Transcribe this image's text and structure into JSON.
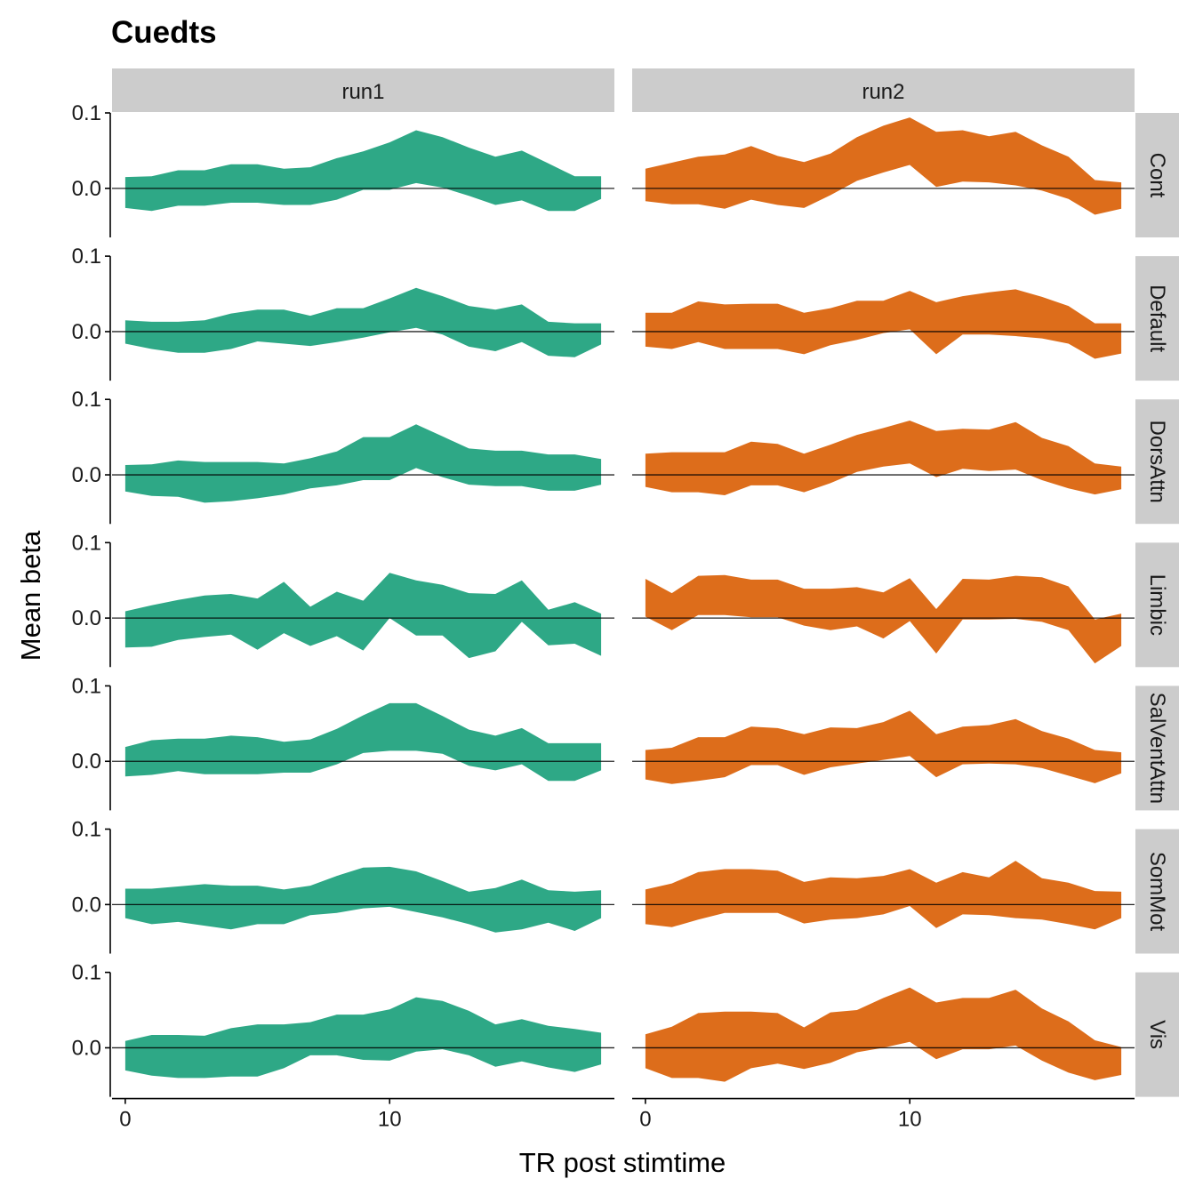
{
  "chart_data": {
    "type": "area",
    "title": "Cuedts",
    "xlabel": "TR post stimtime",
    "ylabel": "Mean beta",
    "xlim": [
      -0.5,
      18.5
    ],
    "ylim": [
      -0.065,
      0.1
    ],
    "x_ticks": [
      0,
      10
    ],
    "x_tick_labels": [
      "0",
      "10"
    ],
    "y_ticks": [
      0.0,
      0.1
    ],
    "y_tick_labels": [
      "0.0",
      "0.1"
    ],
    "reference_line_y": 0,
    "columns": [
      "run1",
      "run2"
    ],
    "rows": [
      "Cont",
      "Default",
      "DorsAttn",
      "Limbic",
      "SalVentAttn",
      "SomMot",
      "Vis"
    ],
    "colors": {
      "run1": "#2ea886",
      "run2": "#dd6d1b",
      "strip": "#cccccc"
    },
    "x": [
      0,
      1,
      2,
      3,
      4,
      5,
      6,
      7,
      8,
      9,
      10,
      11,
      12,
      13,
      14,
      15,
      16,
      17,
      18
    ],
    "panels": [
      {
        "row": "Cont",
        "col": "run1",
        "upper": [
          0.015,
          0.016,
          0.024,
          0.024,
          0.032,
          0.032,
          0.026,
          0.028,
          0.04,
          0.049,
          0.061,
          0.077,
          0.068,
          0.054,
          0.042,
          0.05,
          0.033,
          0.016,
          0.016
        ],
        "lower": [
          -0.026,
          -0.03,
          -0.023,
          -0.023,
          -0.019,
          -0.019,
          -0.022,
          -0.022,
          -0.015,
          -0.002,
          -0.002,
          0.007,
          0.001,
          -0.01,
          -0.022,
          -0.016,
          -0.03,
          -0.03,
          -0.014
        ]
      },
      {
        "row": "Cont",
        "col": "run2",
        "upper": [
          0.026,
          0.034,
          0.042,
          0.045,
          0.056,
          0.043,
          0.035,
          0.046,
          0.068,
          0.083,
          0.094,
          0.075,
          0.077,
          0.069,
          0.075,
          0.057,
          0.042,
          0.011,
          0.008
        ],
        "lower": [
          -0.017,
          -0.021,
          -0.021,
          -0.027,
          -0.015,
          -0.022,
          -0.026,
          -0.009,
          0.01,
          0.021,
          0.031,
          0.002,
          0.009,
          0.008,
          0.004,
          -0.003,
          -0.014,
          -0.035,
          -0.027
        ]
      },
      {
        "row": "Default",
        "col": "run1",
        "upper": [
          0.015,
          0.013,
          0.013,
          0.015,
          0.024,
          0.029,
          0.029,
          0.021,
          0.031,
          0.031,
          0.044,
          0.058,
          0.047,
          0.034,
          0.029,
          0.036,
          0.013,
          0.011,
          0.011
        ],
        "lower": [
          -0.016,
          -0.023,
          -0.028,
          -0.028,
          -0.023,
          -0.013,
          -0.016,
          -0.019,
          -0.014,
          -0.008,
          -0.001,
          0.005,
          -0.004,
          -0.02,
          -0.026,
          -0.014,
          -0.032,
          -0.034,
          -0.017
        ]
      },
      {
        "row": "Default",
        "col": "run2",
        "upper": [
          0.025,
          0.025,
          0.04,
          0.036,
          0.037,
          0.037,
          0.025,
          0.031,
          0.041,
          0.041,
          0.054,
          0.039,
          0.047,
          0.052,
          0.056,
          0.046,
          0.034,
          0.011,
          0.011
        ],
        "lower": [
          -0.02,
          -0.023,
          -0.014,
          -0.023,
          -0.023,
          -0.023,
          -0.03,
          -0.018,
          -0.011,
          -0.002,
          0.003,
          -0.03,
          -0.004,
          -0.004,
          -0.006,
          -0.009,
          -0.016,
          -0.036,
          -0.029
        ]
      },
      {
        "row": "DorsAttn",
        "col": "run1",
        "upper": [
          0.013,
          0.014,
          0.019,
          0.017,
          0.017,
          0.017,
          0.015,
          0.022,
          0.031,
          0.05,
          0.05,
          0.067,
          0.051,
          0.035,
          0.032,
          0.032,
          0.027,
          0.027,
          0.021
        ],
        "lower": [
          -0.022,
          -0.028,
          -0.029,
          -0.037,
          -0.035,
          -0.031,
          -0.026,
          -0.018,
          -0.014,
          -0.007,
          -0.007,
          0.009,
          -0.003,
          -0.013,
          -0.015,
          -0.015,
          -0.021,
          -0.021,
          -0.013
        ]
      },
      {
        "row": "DorsAttn",
        "col": "run2",
        "upper": [
          0.028,
          0.03,
          0.03,
          0.03,
          0.044,
          0.041,
          0.028,
          0.04,
          0.053,
          0.062,
          0.072,
          0.058,
          0.061,
          0.06,
          0.07,
          0.049,
          0.038,
          0.015,
          0.011
        ],
        "lower": [
          -0.016,
          -0.023,
          -0.023,
          -0.027,
          -0.014,
          -0.014,
          -0.023,
          -0.011,
          0.004,
          0.011,
          0.015,
          -0.003,
          0.008,
          0.005,
          0.007,
          -0.007,
          -0.018,
          -0.026,
          -0.019
        ]
      },
      {
        "row": "Limbic",
        "col": "run1",
        "upper": [
          0.009,
          0.017,
          0.024,
          0.03,
          0.032,
          0.026,
          0.048,
          0.015,
          0.035,
          0.023,
          0.06,
          0.05,
          0.044,
          0.033,
          0.032,
          0.05,
          0.011,
          0.021,
          0.006
        ],
        "lower": [
          -0.039,
          -0.038,
          -0.029,
          -0.025,
          -0.022,
          -0.042,
          -0.02,
          -0.037,
          -0.024,
          -0.043,
          0.0,
          -0.023,
          -0.023,
          -0.053,
          -0.044,
          -0.005,
          -0.036,
          -0.034,
          -0.05
        ]
      },
      {
        "row": "Limbic",
        "col": "run2",
        "upper": [
          0.052,
          0.033,
          0.056,
          0.057,
          0.051,
          0.051,
          0.039,
          0.039,
          0.041,
          0.034,
          0.053,
          0.012,
          0.052,
          0.051,
          0.056,
          0.054,
          0.042,
          -0.002,
          0.006
        ],
        "lower": [
          0.002,
          -0.016,
          0.004,
          0.004,
          0.001,
          0.001,
          -0.01,
          -0.016,
          -0.011,
          -0.027,
          -0.004,
          -0.047,
          -0.002,
          -0.002,
          -0.001,
          -0.005,
          -0.016,
          -0.06,
          -0.037
        ]
      },
      {
        "row": "SalVentAttn",
        "col": "run1",
        "upper": [
          0.019,
          0.028,
          0.03,
          0.03,
          0.034,
          0.032,
          0.026,
          0.029,
          0.043,
          0.061,
          0.077,
          0.077,
          0.06,
          0.042,
          0.034,
          0.044,
          0.024,
          0.024,
          0.024
        ],
        "lower": [
          -0.02,
          -0.018,
          -0.013,
          -0.017,
          -0.017,
          -0.017,
          -0.015,
          -0.015,
          -0.004,
          0.011,
          0.014,
          0.014,
          0.01,
          -0.006,
          -0.012,
          -0.004,
          -0.026,
          -0.026,
          -0.012
        ]
      },
      {
        "row": "SalVentAttn",
        "col": "run2",
        "upper": [
          0.015,
          0.018,
          0.032,
          0.032,
          0.046,
          0.044,
          0.036,
          0.045,
          0.044,
          0.052,
          0.067,
          0.036,
          0.046,
          0.048,
          0.056,
          0.04,
          0.03,
          0.015,
          0.012
        ],
        "lower": [
          -0.024,
          -0.03,
          -0.026,
          -0.021,
          -0.005,
          -0.005,
          -0.018,
          -0.008,
          -0.003,
          0.002,
          0.007,
          -0.021,
          -0.004,
          -0.003,
          -0.004,
          -0.009,
          -0.019,
          -0.029,
          -0.016
        ]
      },
      {
        "row": "SomMot",
        "col": "run1",
        "upper": [
          0.021,
          0.021,
          0.024,
          0.027,
          0.025,
          0.025,
          0.02,
          0.025,
          0.038,
          0.049,
          0.05,
          0.044,
          0.031,
          0.017,
          0.022,
          0.033,
          0.019,
          0.017,
          0.019
        ],
        "lower": [
          -0.018,
          -0.026,
          -0.023,
          -0.028,
          -0.033,
          -0.026,
          -0.026,
          -0.014,
          -0.011,
          -0.005,
          -0.003,
          -0.01,
          -0.017,
          -0.026,
          -0.037,
          -0.033,
          -0.024,
          -0.035,
          -0.018
        ]
      },
      {
        "row": "SomMot",
        "col": "run2",
        "upper": [
          0.02,
          0.028,
          0.043,
          0.047,
          0.047,
          0.045,
          0.03,
          0.036,
          0.035,
          0.038,
          0.047,
          0.029,
          0.043,
          0.036,
          0.058,
          0.035,
          0.029,
          0.018,
          0.017
        ],
        "lower": [
          -0.026,
          -0.03,
          -0.02,
          -0.011,
          -0.011,
          -0.011,
          -0.025,
          -0.02,
          -0.018,
          -0.013,
          -0.002,
          -0.031,
          -0.013,
          -0.014,
          -0.018,
          -0.02,
          -0.026,
          -0.033,
          -0.018
        ]
      },
      {
        "row": "Vis",
        "col": "run1",
        "upper": [
          0.009,
          0.017,
          0.017,
          0.016,
          0.026,
          0.031,
          0.031,
          0.034,
          0.044,
          0.044,
          0.051,
          0.067,
          0.062,
          0.049,
          0.031,
          0.038,
          0.029,
          0.025,
          0.02
        ],
        "lower": [
          -0.03,
          -0.037,
          -0.04,
          -0.04,
          -0.038,
          -0.038,
          -0.027,
          -0.01,
          -0.01,
          -0.016,
          -0.017,
          -0.005,
          -0.002,
          -0.01,
          -0.025,
          -0.018,
          -0.026,
          -0.032,
          -0.022
        ]
      },
      {
        "row": "Vis",
        "col": "run2",
        "upper": [
          0.018,
          0.028,
          0.046,
          0.048,
          0.048,
          0.046,
          0.027,
          0.047,
          0.05,
          0.066,
          0.08,
          0.06,
          0.066,
          0.066,
          0.077,
          0.052,
          0.035,
          0.01,
          0.001
        ],
        "lower": [
          -0.027,
          -0.04,
          -0.04,
          -0.045,
          -0.027,
          -0.021,
          -0.028,
          -0.02,
          -0.006,
          0.0,
          0.008,
          -0.015,
          -0.002,
          -0.002,
          0.003,
          -0.017,
          -0.033,
          -0.043,
          -0.036
        ]
      }
    ]
  }
}
